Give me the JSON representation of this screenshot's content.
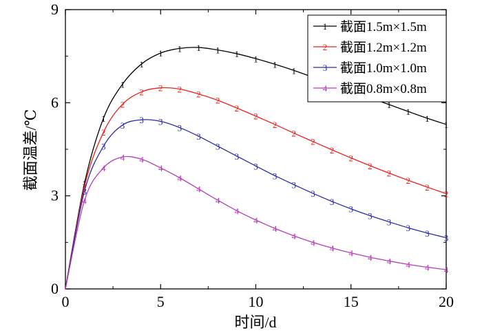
{
  "chart_data": {
    "type": "line",
    "title": "",
    "xlabel": "时间/d",
    "ylabel": "截面温差/℃",
    "xlim": [
      0,
      20
    ],
    "ylim": [
      0,
      9
    ],
    "x_ticks": [
      "0",
      "5",
      "10",
      "15",
      "20"
    ],
    "y_ticks": [
      "0",
      "3",
      "6",
      "9"
    ],
    "grid": false,
    "legend_position": "top-right",
    "x": [
      0,
      1,
      2,
      3,
      4,
      5,
      6,
      7,
      8,
      9,
      10,
      11,
      12,
      13,
      14,
      15,
      16,
      17,
      18,
      19,
      20
    ],
    "series": [
      {
        "name": "截面1.5m×1.5m",
        "marker": "1",
        "color": "#000000",
        "values": [
          0,
          3.4,
          5.5,
          6.6,
          7.25,
          7.6,
          7.75,
          7.78,
          7.7,
          7.58,
          7.42,
          7.24,
          7.04,
          6.82,
          6.6,
          6.38,
          6.16,
          5.94,
          5.72,
          5.5,
          5.3
        ]
      },
      {
        "name": "截面1.2m×1.2m",
        "marker": "2",
        "color": "#e8211c",
        "values": [
          0,
          3.3,
          5.05,
          5.95,
          6.35,
          6.48,
          6.44,
          6.28,
          6.08,
          5.83,
          5.57,
          5.3,
          5.02,
          4.75,
          4.48,
          4.22,
          3.97,
          3.73,
          3.5,
          3.28,
          3.07
        ]
      },
      {
        "name": "截面1.0m×1.0m",
        "marker": "3",
        "color": "#2a2aa6",
        "values": [
          0,
          3.15,
          4.6,
          5.28,
          5.45,
          5.4,
          5.2,
          4.92,
          4.6,
          4.28,
          3.96,
          3.65,
          3.36,
          3.08,
          2.82,
          2.58,
          2.36,
          2.16,
          1.97,
          1.8,
          1.65
        ]
      },
      {
        "name": "截面0.8m×0.8m",
        "marker": "4",
        "color": "#b63cb6",
        "values": [
          0,
          2.85,
          3.9,
          4.25,
          4.18,
          3.9,
          3.58,
          3.22,
          2.86,
          2.52,
          2.22,
          1.95,
          1.71,
          1.5,
          1.32,
          1.16,
          1.02,
          0.9,
          0.79,
          0.7,
          0.62
        ]
      }
    ]
  }
}
